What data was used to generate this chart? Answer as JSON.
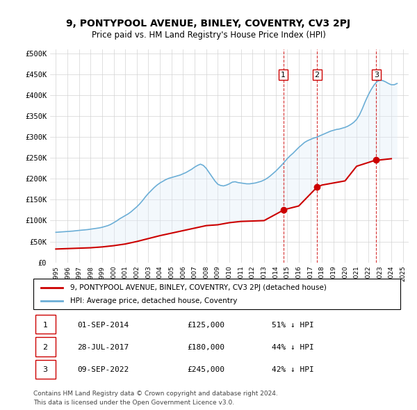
{
  "title": "9, PONTYPOOL AVENUE, BINLEY, COVENTRY, CV3 2PJ",
  "subtitle": "Price paid vs. HM Land Registry's House Price Index (HPI)",
  "hpi_label": "HPI: Average price, detached house, Coventry",
  "property_label": "9, PONTYPOOL AVENUE, BINLEY, COVENTRY, CV3 2PJ (detached house)",
  "footer1": "Contains HM Land Registry data © Crown copyright and database right 2024.",
  "footer2": "This data is licensed under the Open Government Licence v3.0.",
  "transactions": [
    {
      "num": 1,
      "date": "01-SEP-2014",
      "price": 125000,
      "pct": "51% ↓ HPI",
      "year": 2014.67
    },
    {
      "num": 2,
      "date": "28-JUL-2017",
      "price": 180000,
      "pct": "44% ↓ HPI",
      "year": 2017.58
    },
    {
      "num": 3,
      "date": "09-SEP-2022",
      "price": 245000,
      "pct": "42% ↓ HPI",
      "year": 2022.69
    }
  ],
  "hpi_color": "#6baed6",
  "property_color": "#cc0000",
  "transaction_marker_color": "#cc0000",
  "vline_color": "#cc0000",
  "shade_color": "#deebf7",
  "ylim": [
    0,
    510000
  ],
  "xlim_start": 1994.5,
  "xlim_end": 2025.5,
  "yticks": [
    0,
    50000,
    100000,
    150000,
    200000,
    250000,
    300000,
    350000,
    400000,
    450000,
    500000
  ],
  "ytick_labels": [
    "£0",
    "£50K",
    "£100K",
    "£150K",
    "£200K",
    "£250K",
    "£300K",
    "£350K",
    "£400K",
    "£450K",
    "£500K"
  ],
  "hpi_years": [
    1995,
    1995.25,
    1995.5,
    1995.75,
    1996,
    1996.25,
    1996.5,
    1996.75,
    1997,
    1997.25,
    1997.5,
    1997.75,
    1998,
    1998.25,
    1998.5,
    1998.75,
    1999,
    1999.25,
    1999.5,
    1999.75,
    2000,
    2000.25,
    2000.5,
    2000.75,
    2001,
    2001.25,
    2001.5,
    2001.75,
    2002,
    2002.25,
    2002.5,
    2002.75,
    2003,
    2003.25,
    2003.5,
    2003.75,
    2004,
    2004.25,
    2004.5,
    2004.75,
    2005,
    2005.25,
    2005.5,
    2005.75,
    2006,
    2006.25,
    2006.5,
    2006.75,
    2007,
    2007.25,
    2007.5,
    2007.75,
    2008,
    2008.25,
    2008.5,
    2008.75,
    2009,
    2009.25,
    2009.5,
    2009.75,
    2010,
    2010.25,
    2010.5,
    2010.75,
    2011,
    2011.25,
    2011.5,
    2011.75,
    2012,
    2012.25,
    2012.5,
    2012.75,
    2013,
    2013.25,
    2013.5,
    2013.75,
    2014,
    2014.25,
    2014.5,
    2014.75,
    2015,
    2015.25,
    2015.5,
    2015.75,
    2016,
    2016.25,
    2016.5,
    2016.75,
    2017,
    2017.25,
    2017.5,
    2017.75,
    2018,
    2018.25,
    2018.5,
    2018.75,
    2019,
    2019.25,
    2019.5,
    2019.75,
    2020,
    2020.25,
    2020.5,
    2020.75,
    2021,
    2021.25,
    2021.5,
    2021.75,
    2022,
    2022.25,
    2022.5,
    2022.75,
    2023,
    2023.25,
    2023.5,
    2023.75,
    2024,
    2024.25,
    2024.5
  ],
  "hpi_values": [
    72000,
    72500,
    73000,
    73500,
    74000,
    74500,
    75000,
    75800,
    76500,
    77200,
    77800,
    78500,
    79500,
    80500,
    81500,
    82500,
    84000,
    86000,
    88000,
    91000,
    95000,
    99000,
    104000,
    108000,
    112000,
    116000,
    121000,
    127000,
    133000,
    140000,
    148000,
    157000,
    165000,
    172000,
    179000,
    185000,
    190000,
    194000,
    198000,
    201000,
    203000,
    205000,
    207000,
    209000,
    212000,
    215000,
    219000,
    223000,
    228000,
    232000,
    235000,
    232000,
    225000,
    215000,
    205000,
    195000,
    187000,
    184000,
    183000,
    185000,
    188000,
    192000,
    193000,
    191000,
    190000,
    189000,
    188000,
    188000,
    189000,
    190000,
    192000,
    194000,
    197000,
    201000,
    206000,
    212000,
    218000,
    225000,
    232000,
    240000,
    248000,
    255000,
    261000,
    268000,
    275000,
    281000,
    287000,
    291000,
    294000,
    297000,
    299000,
    302000,
    305000,
    308000,
    311000,
    314000,
    316000,
    318000,
    319000,
    321000,
    323000,
    326000,
    330000,
    335000,
    342000,
    353000,
    368000,
    385000,
    400000,
    413000,
    424000,
    432000,
    436000,
    435000,
    432000,
    428000,
    425000,
    425000,
    428000
  ],
  "property_years": [
    1995,
    1996,
    1997,
    1998,
    1999,
    2000,
    2001,
    2002,
    2003,
    2004,
    2005,
    2006,
    2007,
    2008,
    2009,
    2010,
    2011,
    2012,
    2013,
    2014.67,
    2015,
    2016,
    2017.58,
    2018,
    2019,
    2020,
    2021,
    2022.69,
    2023,
    2024
  ],
  "property_values": [
    32000,
    33000,
    34000,
    35000,
    37000,
    40000,
    44000,
    50000,
    57000,
    64000,
    70000,
    76000,
    82000,
    88000,
    90000,
    95000,
    98000,
    99000,
    100000,
    125000,
    128000,
    135000,
    180000,
    185000,
    190000,
    195000,
    230000,
    245000,
    245000,
    248000
  ]
}
